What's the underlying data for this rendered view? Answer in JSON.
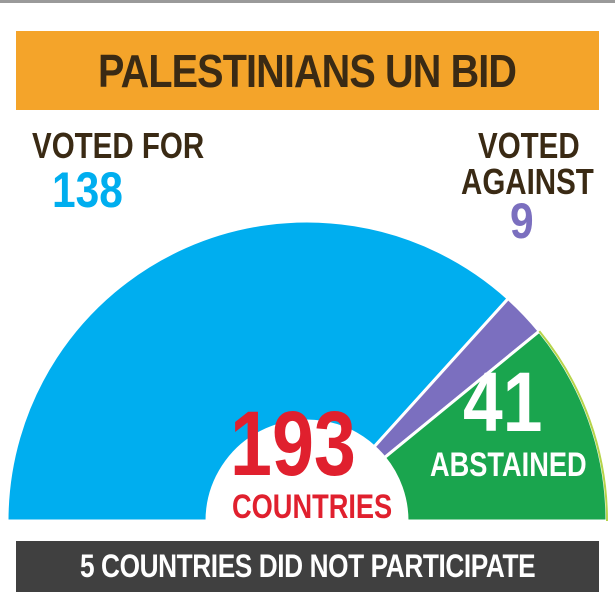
{
  "header": {
    "title": "PALESTINIANS UN BID"
  },
  "footer": {
    "note": "5 COUNTRIES DID NOT PARTICIPATE"
  },
  "total": {
    "value": "193",
    "label": "COUNTRIES"
  },
  "colors": {
    "for": "#00aeef",
    "against": "#7b6fbf",
    "abstained": "#1aa54e",
    "total": "#e0202e",
    "title_bar": "#f4a42a",
    "footer_bar": "#404040"
  },
  "chart_data": {
    "type": "pie",
    "title": "PALESTINIANS UN BID",
    "categories": [
      "VOTED FOR",
      "VOTED AGAINST",
      "ABSTAINED"
    ],
    "values": [
      138,
      9,
      41
    ],
    "total": 193,
    "total_label": "COUNTRIES",
    "not_participating": 5
  },
  "labels": {
    "for_caption": "VOTED FOR",
    "for_value": "138",
    "against_caption_1": "VOTED",
    "against_caption_2": "AGAINST",
    "against_value": "9",
    "abstained_value": "41",
    "abstained_caption": "ABSTAINED"
  }
}
